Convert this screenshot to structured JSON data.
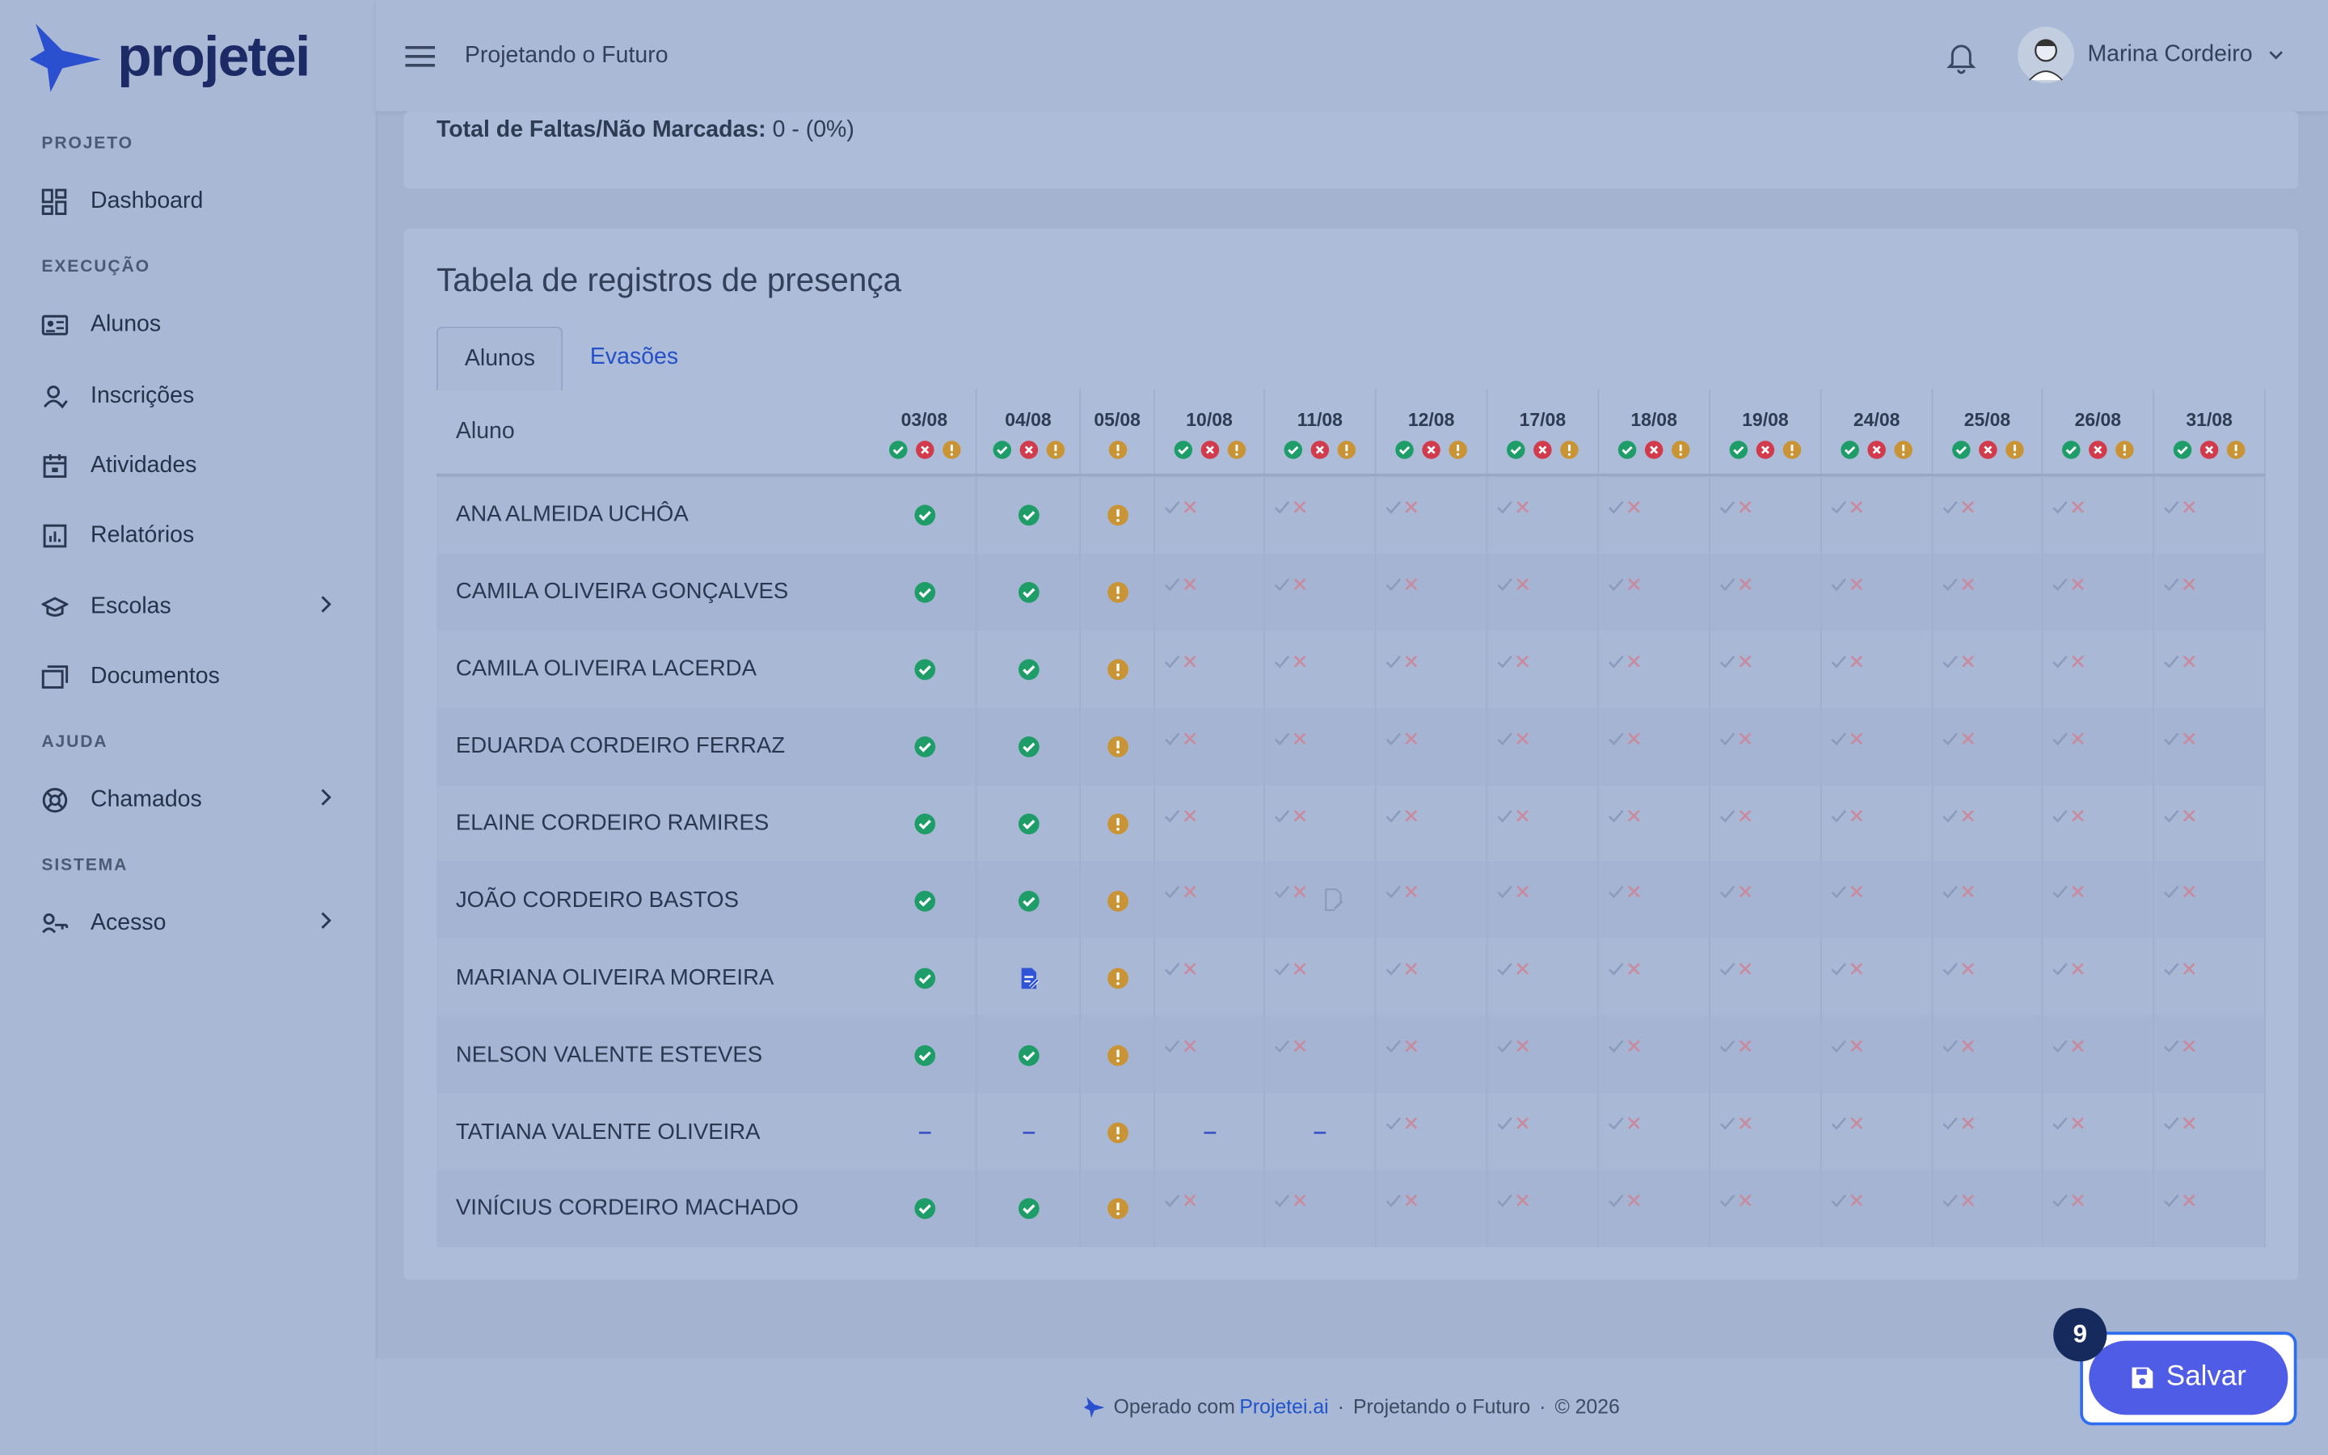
{
  "header": {
    "brand": "projetei",
    "project": "Projetando o Futuro",
    "user": "Marina Cordeiro"
  },
  "sidebar": [
    {
      "section": "PROJETO",
      "items": [
        {
          "label": "Dashboard",
          "icon": "dash"
        }
      ]
    },
    {
      "section": "EXECUÇÃO",
      "items": [
        {
          "label": "Alunos",
          "icon": "card"
        },
        {
          "label": "Inscrições",
          "icon": "user"
        },
        {
          "label": "Atividades",
          "icon": "cal"
        },
        {
          "label": "Relatórios",
          "icon": "chart"
        },
        {
          "label": "Escolas",
          "icon": "school",
          "submenu": true
        },
        {
          "label": "Documentos",
          "icon": "docs"
        }
      ]
    },
    {
      "section": "AJUDA",
      "items": [
        {
          "label": "Chamados",
          "icon": "help",
          "submenu": true
        }
      ]
    },
    {
      "section": "SISTEMA",
      "items": [
        {
          "label": "Acesso",
          "icon": "key",
          "submenu": true
        }
      ]
    }
  ],
  "summary": {
    "label": "Total de Faltas/Não Marcadas:",
    "value": "0 - (0%)"
  },
  "table": {
    "title": "Tabela de registros de presença",
    "tabs": [
      "Alunos",
      "Evasões"
    ],
    "active_tab": 0,
    "name_header": "Aluno",
    "dates": [
      "03/08",
      "04/08",
      "05/08",
      "10/08",
      "11/08",
      "12/08",
      "17/08",
      "18/08",
      "19/08",
      "24/08",
      "25/08",
      "26/08",
      "31/08"
    ],
    "header_icons": [
      "PXW",
      "PXW",
      "W",
      "PXW",
      "PXW",
      "PXW",
      "PXW",
      "PXW",
      "PXW",
      "PXW",
      "PXW",
      "PXW",
      "PXW"
    ],
    "rows": [
      {
        "name": "ANA ALMEIDA UCHÔA",
        "status": "PPWUUUUUUUUUU"
      },
      {
        "name": "CAMILA OLIVEIRA GONÇALVES",
        "status": "PPWUUUUUUUUUU"
      },
      {
        "name": "CAMILA OLIVEIRA LACERDA",
        "status": "PPWUUUUUUUUUU"
      },
      {
        "name": "EDUARDA CORDEIRO FERRAZ",
        "status": "PPWUUUUUUUUUU"
      },
      {
        "name": "ELAINE CORDEIRO RAMIRES",
        "status": "PPWUUUUUUUUUU"
      },
      {
        "name": "JOÃO CORDEIRO BASTOS",
        "status": "PPWUNUUUUUUUU"
      },
      {
        "name": "MARIANA OLIVEIRA MOREIRA",
        "status": "PJWUUUUUUUUUU"
      },
      {
        "name": "NELSON VALENTE ESTEVES",
        "status": "PPWUUUUUUUUUU"
      },
      {
        "name": "TATIANA VALENTE OLIVEIRA",
        "status": "DDWDDUUUUUUUU"
      },
      {
        "name": "VINÍCIUS CORDEIRO MACHADO",
        "status": "PPWUUUUUUUUUU"
      }
    ]
  },
  "footer": {
    "prefix": "Operado com",
    "link": "Projetei.ai",
    "project": "Projetando o Futuro",
    "copyright": "© 2026"
  },
  "save": {
    "label": "Salvar",
    "badge": "9"
  }
}
